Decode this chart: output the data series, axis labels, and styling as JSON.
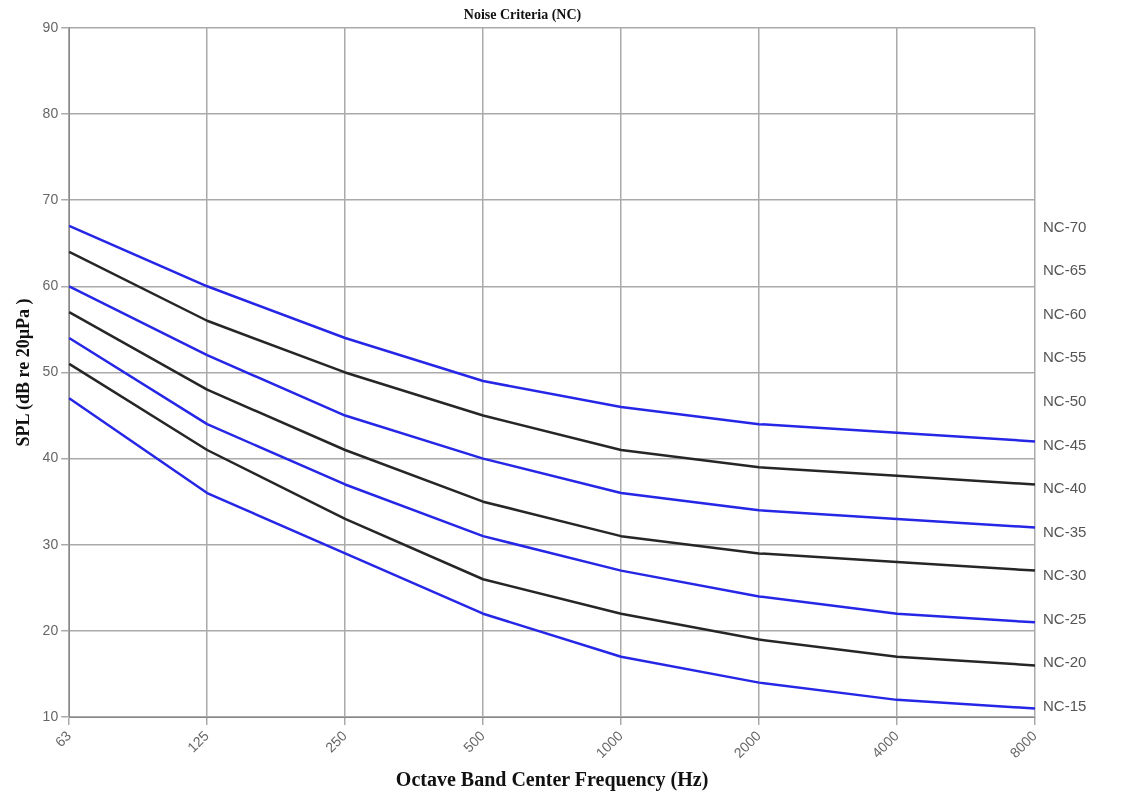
{
  "chart_data": {
    "type": "line",
    "title": "Noise Criteria (NC)",
    "xlabel": "Octave Band Center Frequency (Hz)",
    "ylabel": "SPL (dB re 20µPa )",
    "categories": [
      "63",
      "125",
      "250",
      "500",
      "1000",
      "2000",
      "4000",
      "8000"
    ],
    "ylim": [
      10,
      90
    ],
    "yticks": [
      10,
      20,
      30,
      40,
      50,
      60,
      70,
      80,
      90
    ],
    "grid": true,
    "legend": false,
    "marker": "none",
    "line_style": "solid",
    "series": [
      {
        "color": "#2626e6",
        "values": [
          67,
          60,
          54,
          49,
          46,
          44,
          43,
          42
        ]
      },
      {
        "color": "#262626",
        "values": [
          64,
          56,
          50,
          45,
          41,
          39,
          38,
          37
        ]
      },
      {
        "color": "#2626e6",
        "values": [
          60,
          52,
          45,
          40,
          36,
          34,
          33,
          32
        ]
      },
      {
        "color": "#262626",
        "values": [
          57,
          48,
          41,
          35,
          31,
          29,
          28,
          27
        ]
      },
      {
        "color": "#2626e6",
        "values": [
          54,
          44,
          37,
          31,
          27,
          24,
          22,
          21
        ]
      },
      {
        "color": "#262626",
        "values": [
          51,
          41,
          33,
          26,
          22,
          19,
          17,
          16
        ]
      },
      {
        "color": "#2626e6",
        "values": [
          47,
          36,
          29,
          22,
          17,
          14,
          12,
          11
        ]
      }
    ],
    "annotations": [
      "NC-70",
      "NC-65",
      "NC-60",
      "NC-55",
      "NC-50",
      "NC-45",
      "NC-40",
      "NC-35",
      "NC-30",
      "NC-25",
      "NC-20",
      "NC-15"
    ]
  }
}
